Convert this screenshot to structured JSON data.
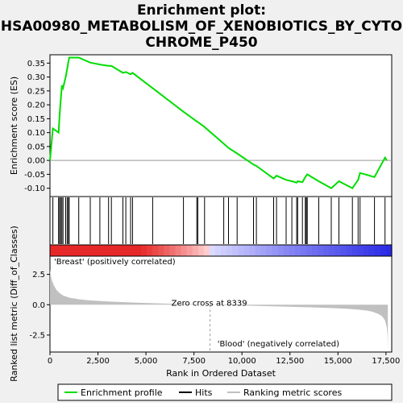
{
  "chart_data": {
    "type": "line",
    "title_lines": [
      "Enrichment plot:",
      "HSA00980_METABOLISM_OF_XENOBIOTICS_BY_CYTO",
      "CHROME_P450"
    ],
    "xlabel": "Rank in Ordered Dataset",
    "top_ylabel": "Enrichment score (ES)",
    "bottom_ylabel": "Ranked list metric (Diff_of_Classes)",
    "xlim": [
      0,
      17800
    ],
    "x_ticks": [
      0,
      2500,
      5000,
      7500,
      10000,
      12500,
      15000,
      17500
    ],
    "x_tick_labels": [
      "0",
      "2,500",
      "5,000",
      "7,500",
      "10,000",
      "12,500",
      "15,000",
      "17,500"
    ],
    "es_ylim": [
      -0.13,
      0.38
    ],
    "es_ticks": [
      -0.1,
      -0.05,
      0.0,
      0.05,
      0.1,
      0.15,
      0.2,
      0.25,
      0.3,
      0.35
    ],
    "es_tick_labels": [
      "-0.10",
      "-0.05",
      "0.00",
      "0.05",
      "0.10",
      "0.15",
      "0.20",
      "0.25",
      "0.30",
      "0.35"
    ],
    "metric_ylim": [
      -3.9,
      4.0
    ],
    "metric_ticks": [
      -2.5,
      0.0,
      2.5
    ],
    "metric_tick_labels": [
      "-2.5",
      "0.0",
      "2.5"
    ],
    "enrichment_profile": {
      "name": "Enrichment profile",
      "color": "#00dd00",
      "x": [
        0,
        150,
        450,
        500,
        560,
        620,
        680,
        820,
        900,
        960,
        1000,
        1500,
        2100,
        2600,
        3050,
        3200,
        3800,
        3950,
        4200,
        4300,
        5350,
        6950,
        7650,
        7700,
        8050,
        9050,
        9300,
        9750,
        10600,
        10750,
        11650,
        11800,
        12300,
        12600,
        12850,
        12900,
        13150,
        13300,
        13350,
        13400,
        14000,
        14650,
        15050,
        15750,
        16050,
        16150,
        16900,
        17450,
        17550
      ],
      "y": [
        0.0,
        0.115,
        0.1,
        0.16,
        0.215,
        0.27,
        0.26,
        0.3,
        0.33,
        0.355,
        0.37,
        0.37,
        0.352,
        0.345,
        0.34,
        0.34,
        0.315,
        0.318,
        0.31,
        0.315,
        0.26,
        0.175,
        0.14,
        0.138,
        0.12,
        0.06,
        0.045,
        0.025,
        -0.015,
        -0.02,
        -0.065,
        -0.055,
        -0.07,
        -0.075,
        -0.08,
        -0.075,
        -0.078,
        -0.06,
        -0.055,
        -0.05,
        -0.075,
        -0.1,
        -0.075,
        -0.1,
        -0.07,
        -0.045,
        -0.06,
        0.01,
        0.0
      ]
    },
    "hits": {
      "name": "Hits",
      "x": [
        150,
        450,
        500,
        560,
        620,
        680,
        820,
        900,
        960,
        1000,
        1500,
        2100,
        2600,
        3050,
        3200,
        3800,
        3950,
        4200,
        4300,
        5350,
        6950,
        7650,
        7700,
        8050,
        9050,
        9300,
        9750,
        10600,
        10750,
        11650,
        11800,
        12300,
        12600,
        12850,
        12900,
        13150,
        13300,
        13350,
        13400,
        14000,
        14650,
        15050,
        15750,
        16050,
        16150,
        16900,
        17450
      ]
    },
    "ranking_metric": {
      "name": "Ranking metric scores",
      "color": "#c0c0c0",
      "x": [
        0,
        40,
        100,
        200,
        350,
        500,
        700,
        1000,
        1500,
        2000,
        3000,
        4000,
        5000,
        6000,
        7000,
        8339,
        9000,
        10000,
        11000,
        12000,
        13000,
        14000,
        15000,
        15500,
        16000,
        16500,
        16800,
        17100,
        17300,
        17450,
        17550,
        17580,
        17600
      ],
      "y": [
        2.9,
        2.4,
        2.0,
        1.6,
        1.2,
        0.95,
        0.75,
        0.58,
        0.45,
        0.36,
        0.27,
        0.2,
        0.14,
        0.09,
        0.05,
        0.0,
        -0.03,
        -0.07,
        -0.11,
        -0.15,
        -0.19,
        -0.24,
        -0.3,
        -0.34,
        -0.4,
        -0.48,
        -0.58,
        -0.75,
        -0.95,
        -1.3,
        -1.9,
        -2.6,
        -3.7
      ]
    },
    "zero_cross_rank": 8339,
    "zero_cross_label": "Zero cross at 8339",
    "positive_label": "'Breast' (positively correlated)",
    "negative_label": "'Blood' (negatively correlated)",
    "positive_label_color": "#cc0000",
    "negative_label_color": "#0000cc",
    "legend": [
      {
        "label": "Enrichment profile",
        "color": "#00dd00",
        "style": "line"
      },
      {
        "label": "Hits",
        "color": "#000000",
        "style": "line"
      },
      {
        "label": "Ranking metric scores",
        "color": "#c0c0c0",
        "style": "line"
      }
    ]
  }
}
